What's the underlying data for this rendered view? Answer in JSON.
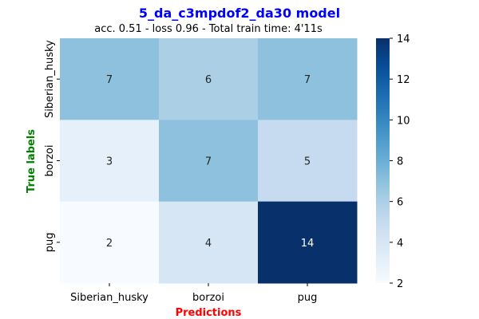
{
  "chart_data": {
    "type": "heatmap",
    "title": "5_da_c3mpdof2_da30 model",
    "subtitle": "acc. 0.51 - loss 0.96 - Total train time: 4'11s",
    "xlabel": "Predictions",
    "ylabel": "True labels",
    "x_categories": [
      "Siberian_husky",
      "borzoi",
      "pug"
    ],
    "y_categories": [
      "Siberian_husky",
      "borzoi",
      "pug"
    ],
    "values": [
      [
        7,
        6,
        7
      ],
      [
        3,
        7,
        5
      ],
      [
        2,
        4,
        14
      ]
    ],
    "colorbar": {
      "min": 2,
      "max": 14,
      "ticks": [
        2,
        4,
        6,
        8,
        10,
        12,
        14
      ]
    },
    "colormap": "Blues",
    "colors": {
      "title": "#0000ff",
      "xlabel": "#ff0000",
      "ylabel": "#008000"
    }
  }
}
